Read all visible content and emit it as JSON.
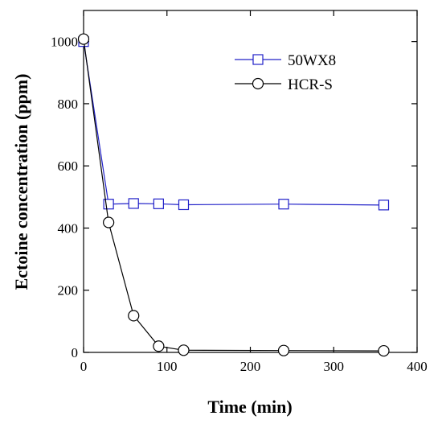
{
  "chart_data": {
    "type": "line",
    "title": "",
    "xlabel": "Time (min)",
    "ylabel": "Ectoine concentration (ppm)",
    "xlim": [
      0,
      400
    ],
    "ylim": [
      0,
      1100
    ],
    "xticks": [
      0,
      100,
      200,
      300,
      400
    ],
    "yticks": [
      0,
      200,
      400,
      600,
      800,
      1000
    ],
    "grid": false,
    "legend_position": "top-right",
    "series": [
      {
        "name": "50WX8",
        "marker": "square",
        "color": "#2020c8",
        "x": [
          0,
          30,
          60,
          90,
          120,
          240,
          360
        ],
        "y": [
          1000,
          477,
          479,
          478,
          475,
          477,
          474
        ]
      },
      {
        "name": "HCR-S",
        "marker": "circle",
        "color": "#000000",
        "x": [
          0,
          30,
          60,
          90,
          120,
          240,
          360
        ],
        "y": [
          1008,
          418,
          118,
          20,
          7,
          6,
          5
        ]
      }
    ]
  }
}
